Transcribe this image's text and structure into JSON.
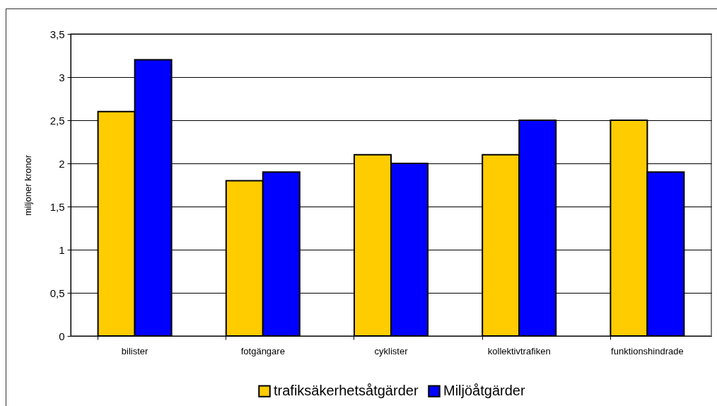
{
  "chart_data": {
    "type": "bar",
    "ylabel": "miljoner kronor",
    "categories": [
      "bilister",
      "fotgängare",
      "cyklister",
      "kollektivtrafiken",
      "funktionshindrade"
    ],
    "series": [
      {
        "name": "trafiksäkerhetsåtgärder",
        "color": "#ffcc00",
        "values": [
          2.6,
          1.8,
          2.1,
          2.1,
          2.5
        ]
      },
      {
        "name": "Miljöåtgärder",
        "color": "#0000ff",
        "values": [
          3.2,
          1.9,
          2.0,
          2.5,
          1.9
        ]
      }
    ],
    "ylim": [
      0,
      3.5
    ],
    "yticks": [
      0,
      {
        "value": 0.5,
        "label": "0,5"
      },
      1,
      {
        "value": 1.5,
        "label": "1,5"
      },
      2,
      {
        "value": 2.5,
        "label": "2,5"
      },
      3,
      {
        "value": 3.5,
        "label": "3,5"
      }
    ],
    "grid": "y",
    "legend": "bottom"
  }
}
